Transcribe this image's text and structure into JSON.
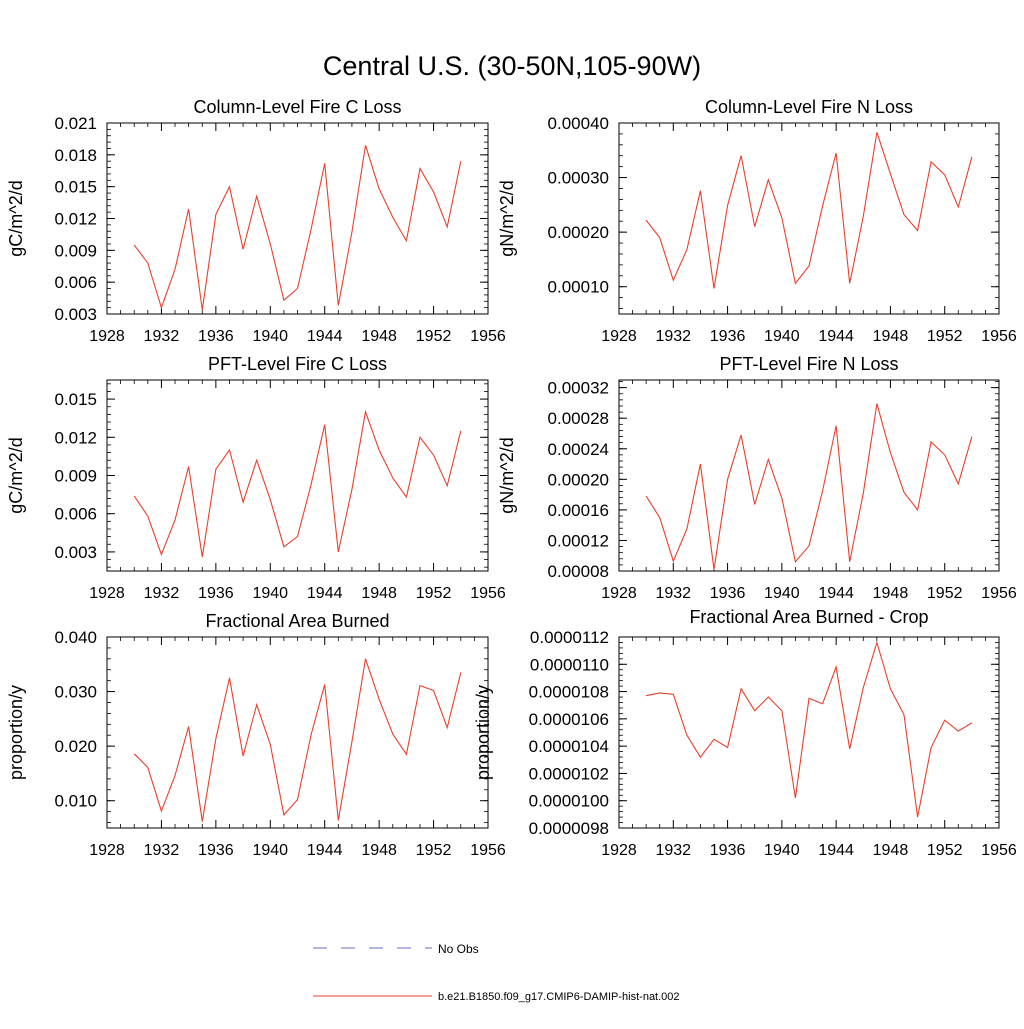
{
  "figure": {
    "title": "Central U.S. (30-50N,105-90W)",
    "legend": [
      {
        "label": "No Obs",
        "color": "#6e6ec8",
        "style": "dashed"
      },
      {
        "label": "b.e21.B1850.f09_g17.CMIP6-DAMIP-hist-nat.002",
        "color": "#e8402c",
        "style": "solid"
      }
    ]
  },
  "chart_data": [
    {
      "type": "line",
      "title": "Column-Level Fire C Loss",
      "ylabel": "gC/m^2/d",
      "xlim": [
        1928,
        1956
      ],
      "ylim": [
        0.003,
        0.021
      ],
      "xticks": [
        1928,
        1932,
        1936,
        1940,
        1944,
        1948,
        1952,
        1956
      ],
      "yticks": [
        "0.003",
        "0.006",
        "0.009",
        "0.012",
        "0.015",
        "0.018",
        "0.021"
      ],
      "series": [
        {
          "color": "#e8402c",
          "x": [
            1930,
            1931,
            1932,
            1933,
            1934,
            1935,
            1936,
            1937,
            1938,
            1939,
            1940,
            1941,
            1942,
            1943,
            1944,
            1945,
            1946,
            1947,
            1948,
            1949,
            1950,
            1951,
            1952,
            1953,
            1954
          ],
          "values": [
            0.0095,
            0.0078,
            0.0036,
            0.0072,
            0.0129,
            0.0034,
            0.0124,
            0.015,
            0.0091,
            0.0141,
            0.0096,
            0.0043,
            0.0054,
            0.011,
            0.0172,
            0.0038,
            0.0107,
            0.0189,
            0.0148,
            0.0121,
            0.0099,
            0.0167,
            0.0145,
            0.0112,
            0.0174
          ]
        }
      ]
    },
    {
      "type": "line",
      "title": "Column-Level Fire N Loss",
      "ylabel": "gN/m^2/d",
      "xlim": [
        1928,
        1956
      ],
      "ylim": [
        5e-05,
        0.0004
      ],
      "xticks": [
        1928,
        1932,
        1936,
        1940,
        1944,
        1948,
        1952,
        1956
      ],
      "yticks": [
        "0.00010",
        "0.00020",
        "0.00030",
        "0.00040"
      ],
      "series": [
        {
          "color": "#e8402c",
          "x": [
            1930,
            1931,
            1932,
            1933,
            1934,
            1935,
            1936,
            1937,
            1938,
            1939,
            1940,
            1941,
            1942,
            1943,
            1944,
            1945,
            1946,
            1947,
            1948,
            1949,
            1950,
            1951,
            1952,
            1953,
            1954
          ],
          "values": [
            0.000222,
            0.00019,
            0.000112,
            0.000168,
            0.000276,
            9.7e-05,
            0.000249,
            0.00034,
            0.00021,
            0.000296,
            0.000226,
            0.000106,
            0.000138,
            0.000248,
            0.000345,
            0.000106,
            0.000229,
            0.000383,
            0.000307,
            0.000232,
            0.000203,
            0.000329,
            0.000305,
            0.000246,
            0.000338
          ]
        }
      ]
    },
    {
      "type": "line",
      "title": "PFT-Level Fire C Loss",
      "ylabel": "gC/m^2/d",
      "xlim": [
        1928,
        1956
      ],
      "ylim": [
        0.0015,
        0.0165
      ],
      "xticks": [
        1928,
        1932,
        1936,
        1940,
        1944,
        1948,
        1952,
        1956
      ],
      "yticks": [
        "0.003",
        "0.006",
        "0.009",
        "0.012",
        "0.015"
      ],
      "series": [
        {
          "color": "#e8402c",
          "x": [
            1930,
            1931,
            1932,
            1933,
            1934,
            1935,
            1936,
            1937,
            1938,
            1939,
            1940,
            1941,
            1942,
            1943,
            1944,
            1945,
            1946,
            1947,
            1948,
            1949,
            1950,
            1951,
            1952,
            1953,
            1954
          ],
          "values": [
            0.0074,
            0.0058,
            0.0028,
            0.0055,
            0.0097,
            0.0026,
            0.0095,
            0.011,
            0.0069,
            0.0102,
            0.0071,
            0.0034,
            0.0042,
            0.0083,
            0.013,
            0.003,
            0.0079,
            0.014,
            0.011,
            0.0088,
            0.0073,
            0.012,
            0.0106,
            0.0082,
            0.0125
          ]
        }
      ]
    },
    {
      "type": "line",
      "title": "PFT-Level Fire N Loss",
      "ylabel": "gN/m^2/d",
      "xlim": [
        1928,
        1956
      ],
      "ylim": [
        8e-05,
        0.00033
      ],
      "xticks": [
        1928,
        1932,
        1936,
        1940,
        1944,
        1948,
        1952,
        1956
      ],
      "yticks": [
        "0.00008",
        "0.00012",
        "0.00016",
        "0.00020",
        "0.00024",
        "0.00028",
        "0.00032"
      ],
      "series": [
        {
          "color": "#e8402c",
          "x": [
            1930,
            1931,
            1932,
            1933,
            1934,
            1935,
            1936,
            1937,
            1938,
            1939,
            1940,
            1941,
            1942,
            1943,
            1944,
            1945,
            1946,
            1947,
            1948,
            1949,
            1950,
            1951,
            1952,
            1953,
            1954
          ],
          "values": [
            0.000178,
            0.00015,
            9.3e-05,
            0.000135,
            0.00022,
            8.2e-05,
            0.0002,
            0.000258,
            0.000167,
            0.000226,
            0.000175,
            9.2e-05,
            0.000113,
            0.000185,
            0.00027,
            9.2e-05,
            0.000182,
            0.000299,
            0.000235,
            0.000183,
            0.00016,
            0.000249,
            0.000232,
            0.000194,
            0.000256
          ]
        }
      ]
    },
    {
      "type": "line",
      "title": "Fractional Area Burned",
      "ylabel": "proportion/y",
      "xlim": [
        1928,
        1956
      ],
      "ylim": [
        0.005,
        0.04
      ],
      "xticks": [
        1928,
        1932,
        1936,
        1940,
        1944,
        1948,
        1952,
        1956
      ],
      "yticks": [
        "0.010",
        "0.020",
        "0.030",
        "0.040"
      ],
      "series": [
        {
          "color": "#e8402c",
          "x": [
            1930,
            1931,
            1932,
            1933,
            1934,
            1935,
            1936,
            1937,
            1938,
            1939,
            1940,
            1941,
            1942,
            1943,
            1944,
            1945,
            1946,
            1947,
            1948,
            1949,
            1950,
            1951,
            1952,
            1953,
            1954
          ],
          "values": [
            0.0186,
            0.0161,
            0.0081,
            0.0146,
            0.0236,
            0.0062,
            0.0214,
            0.0325,
            0.0182,
            0.0276,
            0.0203,
            0.0074,
            0.0102,
            0.0221,
            0.0313,
            0.0064,
            0.0208,
            0.036,
            0.0286,
            0.0222,
            0.0185,
            0.0311,
            0.0302,
            0.0234,
            0.0335
          ]
        }
      ]
    },
    {
      "type": "line",
      "title": "Fractional Area Burned - Crop",
      "ylabel": "proportion/y",
      "xlim": [
        1928,
        1956
      ],
      "ylim": [
        9.8e-06,
        1.12e-05
      ],
      "xticks": [
        1928,
        1932,
        1936,
        1940,
        1944,
        1948,
        1952,
        1956
      ],
      "yticks": [
        "0.0000098",
        "0.0000100",
        "0.0000102",
        "0.0000104",
        "0.0000106",
        "0.0000108",
        "0.0000110",
        "0.0000112"
      ],
      "series": [
        {
          "color": "#e8402c",
          "x": [
            1930,
            1931,
            1932,
            1933,
            1934,
            1935,
            1936,
            1937,
            1938,
            1939,
            1940,
            1941,
            1942,
            1943,
            1944,
            1945,
            1946,
            1947,
            1948,
            1949,
            1950,
            1951,
            1952,
            1953,
            1954
          ],
          "values": [
            1.077e-05,
            1.079e-05,
            1.078e-05,
            1.048e-05,
            1.032e-05,
            1.045e-05,
            1.039e-05,
            1.082e-05,
            1.066e-05,
            1.076e-05,
            1.066e-05,
            1.002e-05,
            1.075e-05,
            1.071e-05,
            1.098e-05,
            1.038e-05,
            1.083e-05,
            1.116e-05,
            1.082e-05,
            1.063e-05,
            9.88e-06,
            1.039e-05,
            1.059e-05,
            1.051e-05,
            1.057e-05
          ]
        }
      ]
    }
  ]
}
